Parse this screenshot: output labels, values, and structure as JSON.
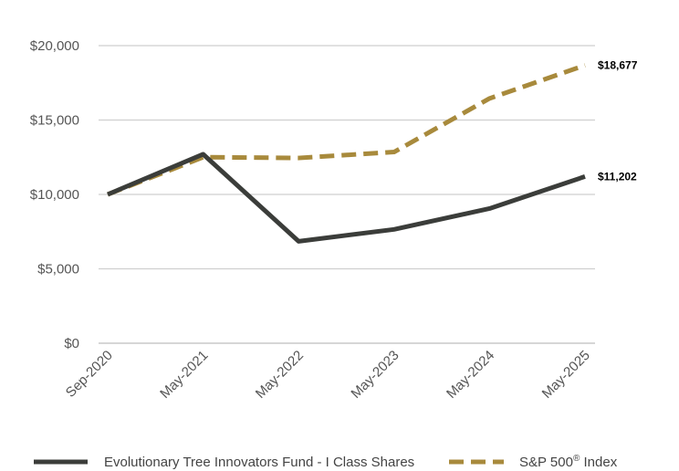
{
  "chart_data": {
    "type": "line",
    "categories": [
      "Sep-2020",
      "May-2021",
      "May-2022",
      "May-2023",
      "May-2024",
      "May-2025"
    ],
    "ylim": [
      0,
      20000
    ],
    "yticks": [
      0,
      5000,
      10000,
      15000,
      20000
    ],
    "ytick_labels": [
      "$0",
      "$5,000",
      "$10,000",
      "$15,000",
      "$20,000"
    ],
    "grid": true,
    "legend_position": "bottom",
    "series": [
      {
        "name": "Evolutionary Tree Innovators Fund - I Class Shares",
        "values": [
          10000,
          12700,
          6850,
          7650,
          9050,
          11202
        ],
        "end_label": "$11,202",
        "color": "#3b3d3a",
        "style": "solid"
      },
      {
        "name": "S&P 500",
        "name_sup": "®",
        "name_suffix": " Index",
        "values": [
          10000,
          12500,
          12450,
          12850,
          16450,
          18677
        ],
        "end_label": "$18,677",
        "color": "#a88a3c",
        "style": "dashed"
      }
    ]
  }
}
